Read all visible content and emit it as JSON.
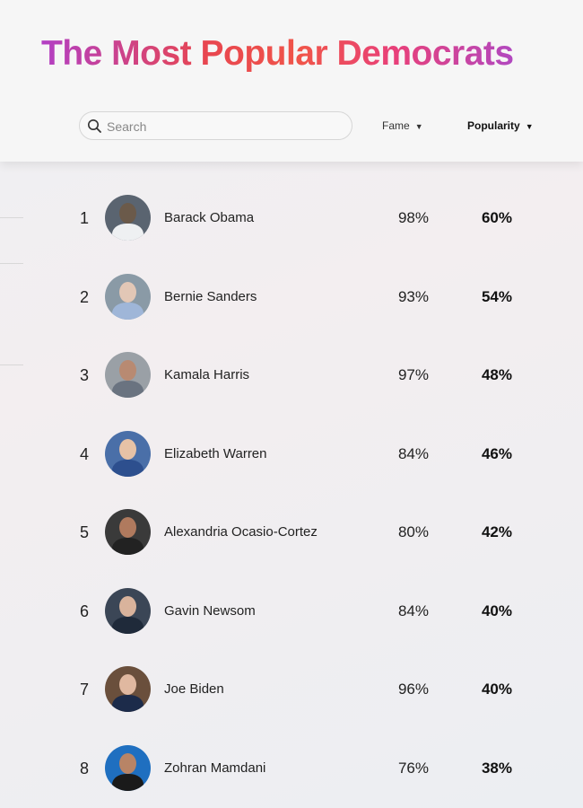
{
  "header": {
    "title": "The Most Popular Democrats",
    "search_placeholder": "Search",
    "sort_fame": "Fame",
    "sort_popularity": "Popularity"
  },
  "rows": [
    {
      "rank": "1",
      "name": "Barack Obama",
      "fame": "98%",
      "popularity": "60%",
      "fame_value": 98,
      "popularity_value": 60
    },
    {
      "rank": "2",
      "name": "Bernie Sanders",
      "fame": "93%",
      "popularity": "54%",
      "fame_value": 93,
      "popularity_value": 54
    },
    {
      "rank": "3",
      "name": "Kamala Harris",
      "fame": "97%",
      "popularity": "48%",
      "fame_value": 97,
      "popularity_value": 48
    },
    {
      "rank": "4",
      "name": "Elizabeth Warren",
      "fame": "84%",
      "popularity": "46%",
      "fame_value": 84,
      "popularity_value": 46
    },
    {
      "rank": "5",
      "name": "Alexandria Ocasio-Cortez",
      "fame": "80%",
      "popularity": "42%",
      "fame_value": 80,
      "popularity_value": 42
    },
    {
      "rank": "6",
      "name": "Gavin Newsom",
      "fame": "84%",
      "popularity": "40%",
      "fame_value": 84,
      "popularity_value": 40
    },
    {
      "rank": "7",
      "name": "Joe Biden",
      "fame": "96%",
      "popularity": "40%",
      "fame_value": 96,
      "popularity_value": 40
    },
    {
      "rank": "8",
      "name": "Zohran Mamdani",
      "fame": "76%",
      "popularity": "38%",
      "fame_value": 76,
      "popularity_value": 38
    }
  ],
  "icons": {
    "search": "search-icon",
    "sort": "caret-down-icon"
  }
}
